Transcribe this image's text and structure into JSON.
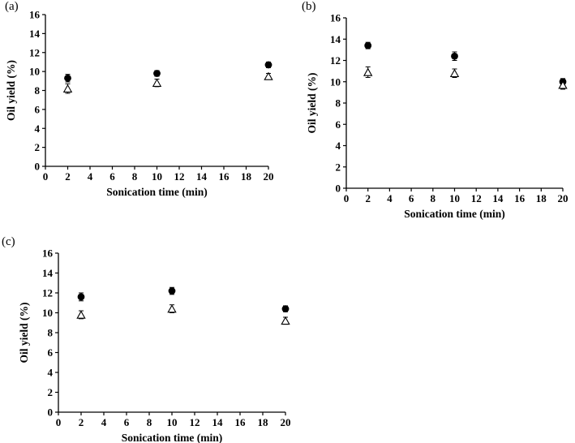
{
  "figure": {
    "background": "#ffffff",
    "marker_color": "#000000"
  },
  "chart_data": [
    {
      "panel_label": "(a)",
      "type": "scatter",
      "title": "",
      "xlabel": "Sonication time (min)",
      "ylabel": "Oil yield (%)",
      "xlim": [
        0,
        20
      ],
      "ylim": [
        0,
        16
      ],
      "xticks": [
        0,
        2,
        4,
        6,
        8,
        10,
        12,
        14,
        16,
        18,
        20
      ],
      "yticks": [
        0,
        2,
        4,
        6,
        8,
        10,
        12,
        14,
        16
      ],
      "grid": false,
      "legend": "none",
      "series": [
        {
          "name": "filled-circle",
          "marker": "circle",
          "x": [
            2,
            10,
            20
          ],
          "y": [
            9.3,
            9.8,
            10.7
          ],
          "yerr": [
            0.4,
            0.3,
            0.3
          ]
        },
        {
          "name": "open-triangle",
          "marker": "triangle-open",
          "x": [
            2,
            10,
            20
          ],
          "y": [
            8.2,
            8.8,
            9.5
          ],
          "yerr": [
            0.5,
            0.4,
            0.3
          ]
        }
      ]
    },
    {
      "panel_label": "(b)",
      "type": "scatter",
      "title": "",
      "xlabel": "Sonication time (min)",
      "ylabel": "Oil yield (%)",
      "xlim": [
        0,
        20
      ],
      "ylim": [
        0,
        16
      ],
      "xticks": [
        0,
        2,
        4,
        6,
        8,
        10,
        12,
        14,
        16,
        18,
        20
      ],
      "yticks": [
        0,
        2,
        4,
        6,
        8,
        10,
        12,
        14,
        16
      ],
      "grid": false,
      "legend": "none",
      "series": [
        {
          "name": "filled-circle",
          "marker": "circle",
          "x": [
            2,
            10,
            20
          ],
          "y": [
            13.4,
            12.4,
            10.0
          ],
          "yerr": [
            0.3,
            0.4,
            0.3
          ]
        },
        {
          "name": "open-triangle",
          "marker": "triangle-open",
          "x": [
            2,
            10,
            20
          ],
          "y": [
            10.9,
            10.8,
            9.7
          ],
          "yerr": [
            0.5,
            0.4,
            0.4
          ]
        }
      ]
    },
    {
      "panel_label": "(c)",
      "type": "scatter",
      "title": "",
      "xlabel": "Sonication time (min)",
      "ylabel": "Oil yield (%)",
      "xlim": [
        0,
        20
      ],
      "ylim": [
        0,
        16
      ],
      "xticks": [
        0,
        2,
        4,
        6,
        8,
        10,
        12,
        14,
        16,
        18,
        20
      ],
      "yticks": [
        0,
        2,
        4,
        6,
        8,
        10,
        12,
        14,
        16
      ],
      "grid": false,
      "legend": "none",
      "series": [
        {
          "name": "filled-circle",
          "marker": "circle",
          "x": [
            2,
            10,
            20
          ],
          "y": [
            11.6,
            12.2,
            10.4
          ],
          "yerr": [
            0.4,
            0.35,
            0.3
          ]
        },
        {
          "name": "open-triangle",
          "marker": "triangle-open",
          "x": [
            2,
            10,
            20
          ],
          "y": [
            9.8,
            10.4,
            9.2
          ],
          "yerr": [
            0.4,
            0.4,
            0.35
          ]
        }
      ]
    }
  ]
}
